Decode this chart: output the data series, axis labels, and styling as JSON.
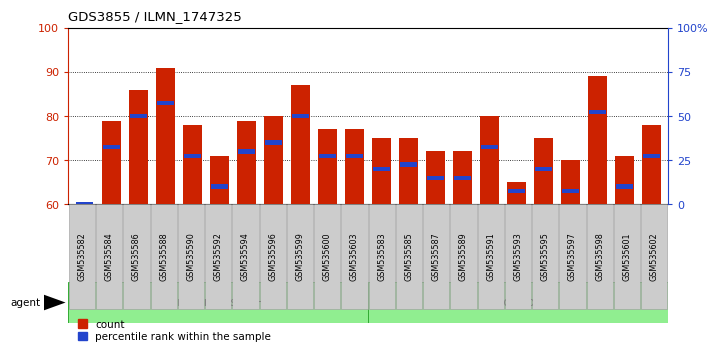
{
  "title": "GDS3855 / ILMN_1747325",
  "samples": [
    "GSM535582",
    "GSM535584",
    "GSM535586",
    "GSM535588",
    "GSM535590",
    "GSM535592",
    "GSM535594",
    "GSM535596",
    "GSM535599",
    "GSM535600",
    "GSM535603",
    "GSM535583",
    "GSM535585",
    "GSM535587",
    "GSM535589",
    "GSM535591",
    "GSM535593",
    "GSM535595",
    "GSM535597",
    "GSM535598",
    "GSM535601",
    "GSM535602"
  ],
  "red_values": [
    60,
    79,
    86,
    91,
    78,
    71,
    79,
    80,
    87,
    77,
    77,
    75,
    75,
    72,
    72,
    80,
    65,
    75,
    70,
    89,
    71,
    78
  ],
  "blue_values": [
    60,
    73,
    80,
    83,
    71,
    64,
    72,
    74,
    80,
    71,
    71,
    68,
    69,
    66,
    66,
    73,
    63,
    68,
    63,
    81,
    64,
    71
  ],
  "group1_label": "estrogen-based HRT",
  "group1_count": 11,
  "group2_label": "control",
  "group2_count": 11,
  "agent_label": "agent",
  "ymin": 60,
  "ymax": 100,
  "yticks_left": [
    60,
    70,
    80,
    90,
    100
  ],
  "yticks_right": [
    0,
    25,
    50,
    75,
    100
  ],
  "ytick_right_labels": [
    "0",
    "25",
    "50",
    "75",
    "100%"
  ],
  "red_color": "#cc2200",
  "blue_color": "#2244cc",
  "bar_width": 0.7,
  "label_bg": "#cccccc",
  "label_edge": "#999999",
  "group_bg": "#90ee90",
  "group_edge": "#33aa33",
  "legend_count": "count",
  "legend_pct": "percentile rank within the sample"
}
